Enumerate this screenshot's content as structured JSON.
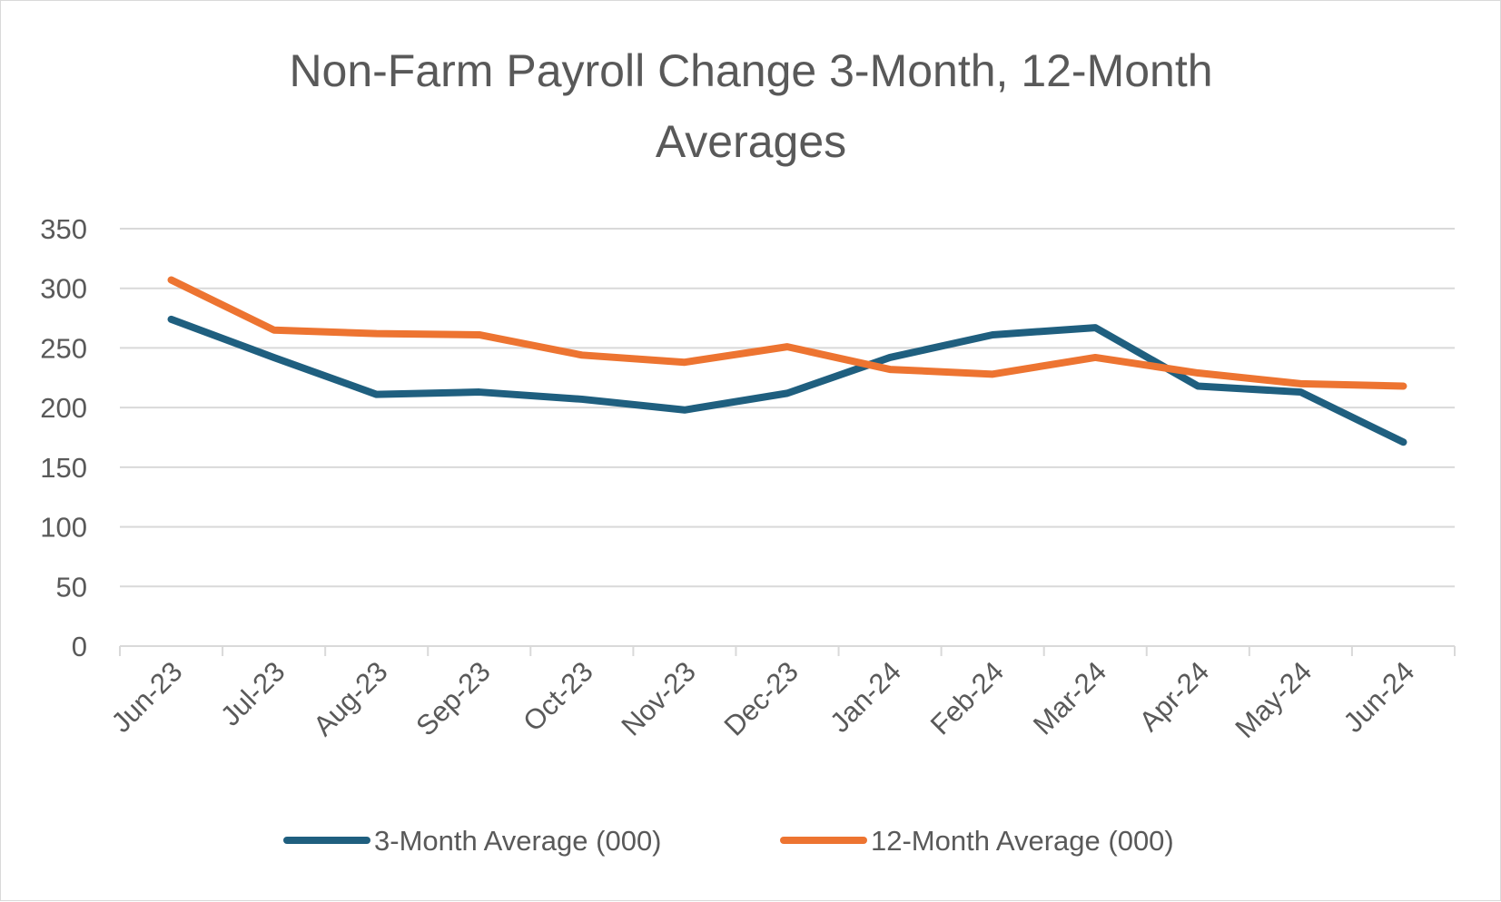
{
  "chart_data": {
    "type": "line",
    "title": "Non-Farm Payroll Change 3-Month, 12-Month Averages",
    "title_lines": [
      "Non-Farm Payroll Change 3-Month, 12-Month",
      "Averages"
    ],
    "categories": [
      "Jun-23",
      "Jul-23",
      "Aug-23",
      "Sep-23",
      "Oct-23",
      "Nov-23",
      "Dec-23",
      "Jan-24",
      "Feb-24",
      "Mar-24",
      "Apr-24",
      "May-24",
      "Jun-24"
    ],
    "series": [
      {
        "name": "3-Month Average (000)",
        "color": "#1f5f7f",
        "values": [
          274,
          242,
          211,
          213,
          207,
          198,
          212,
          242,
          261,
          267,
          218,
          213,
          171
        ]
      },
      {
        "name": "12-Month Average (000)",
        "color": "#ed7431",
        "values": [
          307,
          265,
          262,
          261,
          244,
          238,
          251,
          232,
          228,
          242,
          229,
          220,
          218
        ]
      }
    ],
    "yticks": [
      0,
      50,
      100,
      150,
      200,
      250,
      300,
      350
    ],
    "ylim": [
      0,
      350
    ],
    "xlabel": "",
    "ylabel": "",
    "grid": true,
    "legend_position": "bottom"
  }
}
